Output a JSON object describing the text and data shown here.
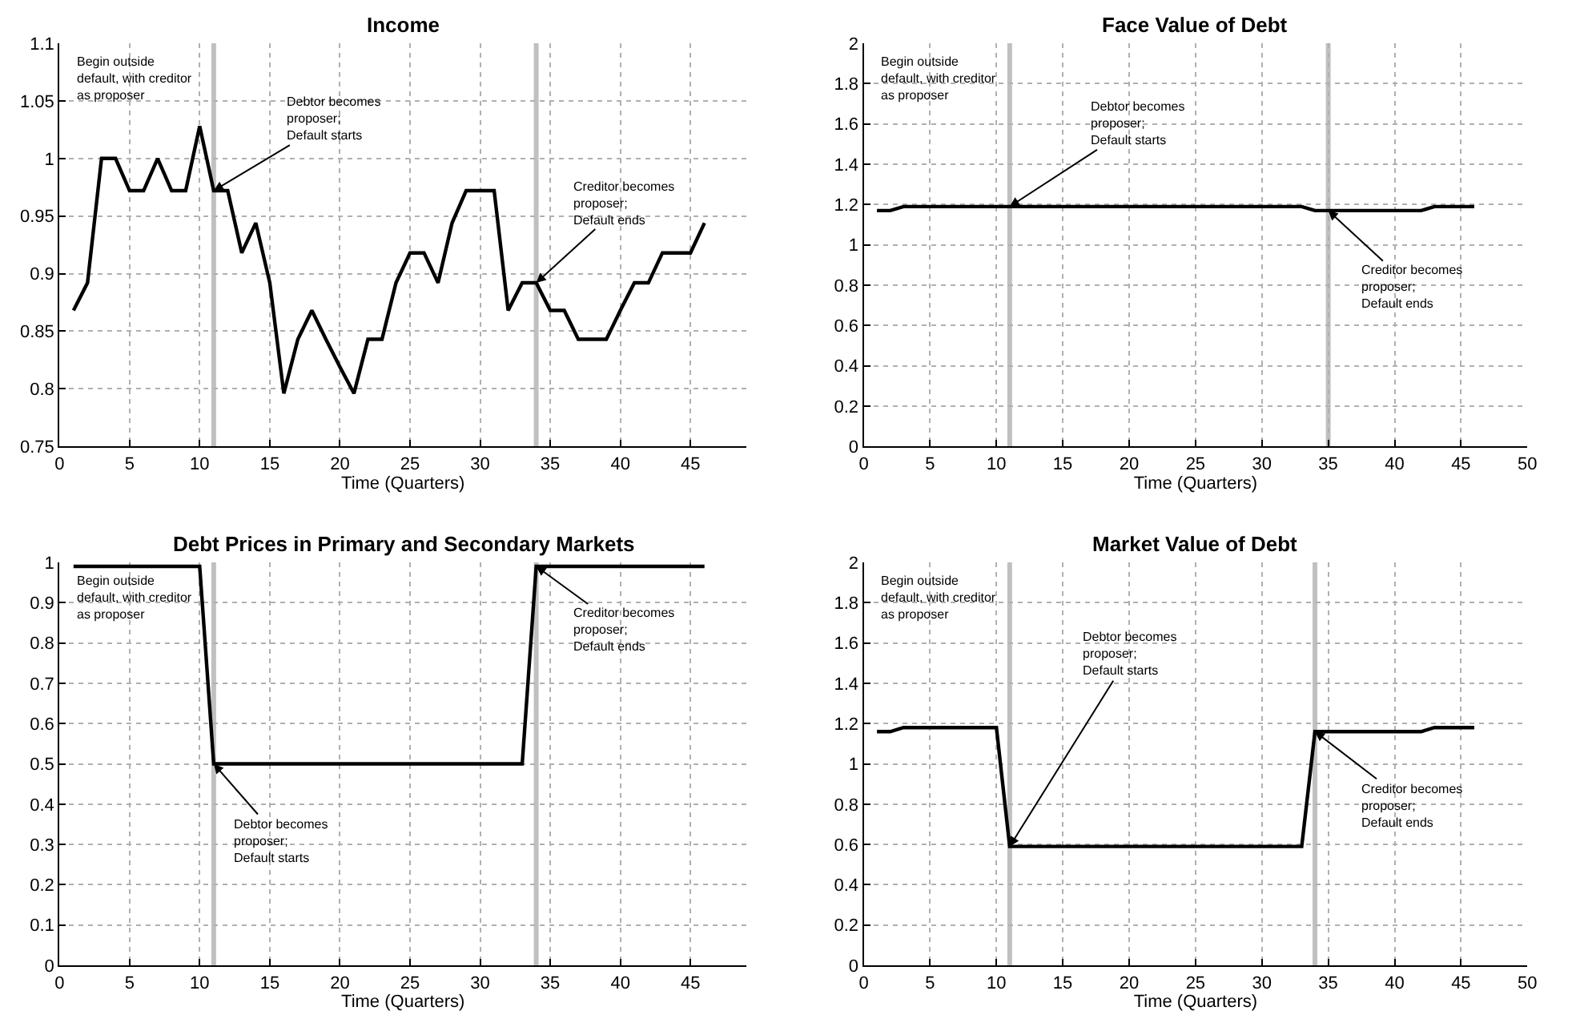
{
  "chart_data": [
    {
      "type": "line",
      "title": "Income",
      "xlabel": "Time (Quarters)",
      "x": [
        1,
        2,
        3,
        4,
        5,
        6,
        7,
        8,
        9,
        10,
        11,
        12,
        13,
        14,
        15,
        16,
        17,
        18,
        19,
        20,
        21,
        22,
        23,
        24,
        25,
        26,
        27,
        28,
        29,
        30,
        31,
        32,
        33,
        34,
        35,
        36,
        37,
        38,
        39,
        40,
        41,
        42,
        43,
        44,
        45,
        46
      ],
      "series": [
        {
          "color": "#000000",
          "values": [
            0.868,
            0.892,
            1.0,
            1.0,
            0.972,
            0.972,
            1.0,
            0.972,
            0.972,
            1.028,
            0.972,
            0.972,
            0.918,
            0.944,
            0.892,
            0.796,
            0.843,
            0.868,
            0.843,
            0.819,
            0.796,
            0.843,
            0.843,
            0.892,
            0.918,
            0.918,
            0.892,
            0.944,
            0.972,
            0.972,
            0.972,
            0.868,
            0.892,
            0.892,
            0.868,
            0.868,
            0.843,
            0.843,
            0.843,
            0.868,
            0.892,
            0.892,
            0.918,
            0.918,
            0.918,
            0.944
          ]
        }
      ],
      "xlim": [
        0,
        49
      ],
      "xticks": [
        0,
        5,
        10,
        15,
        20,
        25,
        30,
        35,
        40,
        45
      ],
      "ylim": [
        0.75,
        1.1
      ],
      "yticks": [
        0.75,
        0.8,
        0.85,
        0.9,
        0.95,
        1,
        1.05,
        1.1
      ],
      "grid": true,
      "ref_lines": [
        {
          "axis": "x",
          "value": 11,
          "color": "#c0c0c0"
        },
        {
          "axis": "x",
          "value": 34,
          "color": "#c0c0c0"
        }
      ],
      "annotations": [
        "Begin outside\ndefault, with creditor\nas proposer",
        {
          "text": "Debtor becomes\nproposer;\nDefault starts",
          "x": 11,
          "y": 0.972
        },
        {
          "text": "Creditor becomes\nproposer;\nDefault ends",
          "x": 34,
          "y": 0.892
        }
      ]
    },
    {
      "type": "line",
      "title": "Face Value of Debt",
      "xlabel": "Time (Quarters)",
      "x": [
        1,
        2,
        3,
        4,
        5,
        6,
        7,
        8,
        9,
        10,
        11,
        12,
        13,
        14,
        15,
        16,
        17,
        18,
        19,
        20,
        21,
        22,
        23,
        24,
        25,
        26,
        27,
        28,
        29,
        30,
        31,
        32,
        33,
        34,
        35,
        36,
        37,
        38,
        39,
        40,
        41,
        42,
        43,
        44,
        45,
        46
      ],
      "series": [
        {
          "color": "#000000",
          "values": [
            1.17,
            1.17,
            1.19,
            1.19,
            1.19,
            1.19,
            1.19,
            1.19,
            1.19,
            1.19,
            1.19,
            1.19,
            1.19,
            1.19,
            1.19,
            1.19,
            1.19,
            1.19,
            1.19,
            1.19,
            1.19,
            1.19,
            1.19,
            1.19,
            1.19,
            1.19,
            1.19,
            1.19,
            1.19,
            1.19,
            1.19,
            1.19,
            1.19,
            1.17,
            1.17,
            1.17,
            1.17,
            1.17,
            1.17,
            1.17,
            1.17,
            1.17,
            1.19,
            1.19,
            1.19,
            1.19
          ]
        }
      ],
      "xlim": [
        0,
        50
      ],
      "xticks": [
        0,
        5,
        10,
        15,
        20,
        25,
        30,
        35,
        40,
        45,
        50
      ],
      "ylim": [
        0,
        2
      ],
      "yticks": [
        0,
        0.2,
        0.4,
        0.6,
        0.8,
        1,
        1.2,
        1.4,
        1.6,
        1.8,
        2
      ],
      "grid": true,
      "ref_lines": [
        {
          "axis": "x",
          "value": 11,
          "color": "#c0c0c0"
        },
        {
          "axis": "x",
          "value": 35,
          "color": "#c0c0c0"
        }
      ],
      "annotations": [
        "Begin outside\ndefault, with creditor\nas proposer",
        {
          "text": "Debtor becomes\nproposer;\nDefault starts",
          "x": 11,
          "y": 1.19
        },
        {
          "text": "Creditor becomes\nproposer;\nDefault ends",
          "x": 35,
          "y": 1.17
        }
      ]
    },
    {
      "type": "line",
      "title": "Debt Prices in Primary and Secondary Markets",
      "xlabel": "Time (Quarters)",
      "x": [
        1,
        2,
        3,
        4,
        5,
        6,
        7,
        8,
        9,
        10,
        11,
        12,
        13,
        14,
        15,
        16,
        17,
        18,
        19,
        20,
        21,
        22,
        23,
        24,
        25,
        26,
        27,
        28,
        29,
        30,
        31,
        32,
        33,
        34,
        35,
        36,
        37,
        38,
        39,
        40,
        41,
        42,
        43,
        44,
        45,
        46
      ],
      "series": [
        {
          "color": "#000000",
          "values": [
            0.99,
            0.99,
            0.99,
            0.99,
            0.99,
            0.99,
            0.99,
            0.99,
            0.99,
            0.99,
            0.5,
            0.5,
            0.5,
            0.5,
            0.5,
            0.5,
            0.5,
            0.5,
            0.5,
            0.5,
            0.5,
            0.5,
            0.5,
            0.5,
            0.5,
            0.5,
            0.5,
            0.5,
            0.5,
            0.5,
            0.5,
            0.5,
            0.5,
            0.99,
            0.99,
            0.99,
            0.99,
            0.99,
            0.99,
            0.99,
            0.99,
            0.99,
            0.99,
            0.99,
            0.99,
            0.99
          ]
        }
      ],
      "xlim": [
        0,
        49
      ],
      "xticks": [
        0,
        5,
        10,
        15,
        20,
        25,
        30,
        35,
        40,
        45
      ],
      "ylim": [
        0,
        1
      ],
      "yticks": [
        0,
        0.1,
        0.2,
        0.3,
        0.4,
        0.5,
        0.6,
        0.7,
        0.8,
        0.9,
        1
      ],
      "grid": true,
      "ref_lines": [
        {
          "axis": "x",
          "value": 11,
          "color": "#c0c0c0"
        },
        {
          "axis": "x",
          "value": 34,
          "color": "#c0c0c0"
        }
      ],
      "annotations": [
        "Begin outside\ndefault, with creditor\nas proposer",
        {
          "text": "Debtor becomes\nproposer;\nDefault starts",
          "x": 11,
          "y": 0.5
        },
        {
          "text": "Creditor becomes\nproposer;\nDefault ends",
          "x": 34,
          "y": 0.99
        }
      ]
    },
    {
      "type": "line",
      "title": "Market Value of Debt",
      "xlabel": "Time (Quarters)",
      "x": [
        1,
        2,
        3,
        4,
        5,
        6,
        7,
        8,
        9,
        10,
        11,
        12,
        13,
        14,
        15,
        16,
        17,
        18,
        19,
        20,
        21,
        22,
        23,
        24,
        25,
        26,
        27,
        28,
        29,
        30,
        31,
        32,
        33,
        34,
        35,
        36,
        37,
        38,
        39,
        40,
        41,
        42,
        43,
        44,
        45,
        46
      ],
      "series": [
        {
          "color": "#000000",
          "values": [
            1.16,
            1.16,
            1.18,
            1.18,
            1.18,
            1.18,
            1.18,
            1.18,
            1.18,
            1.18,
            0.59,
            0.59,
            0.59,
            0.59,
            0.59,
            0.59,
            0.59,
            0.59,
            0.59,
            0.59,
            0.59,
            0.59,
            0.59,
            0.59,
            0.59,
            0.59,
            0.59,
            0.59,
            0.59,
            0.59,
            0.59,
            0.59,
            0.59,
            1.16,
            1.16,
            1.16,
            1.16,
            1.16,
            1.16,
            1.16,
            1.16,
            1.16,
            1.18,
            1.18,
            1.18,
            1.18
          ]
        }
      ],
      "xlim": [
        0,
        50
      ],
      "xticks": [
        0,
        5,
        10,
        15,
        20,
        25,
        30,
        35,
        40,
        45,
        50
      ],
      "ylim": [
        0,
        2
      ],
      "yticks": [
        0,
        0.2,
        0.4,
        0.6,
        0.8,
        1,
        1.2,
        1.4,
        1.6,
        1.8,
        2
      ],
      "grid": true,
      "ref_lines": [
        {
          "axis": "x",
          "value": 11,
          "color": "#c0c0c0"
        },
        {
          "axis": "x",
          "value": 34,
          "color": "#c0c0c0"
        }
      ],
      "annotations": [
        "Begin outside\ndefault, with creditor\nas proposer",
        {
          "text": "Debtor becomes\nproposer;\nDefault starts",
          "x": 11,
          "y": 0.59
        },
        {
          "text": "Creditor becomes\nproposer;\nDefault ends",
          "x": 34,
          "y": 1.16
        }
      ]
    }
  ]
}
